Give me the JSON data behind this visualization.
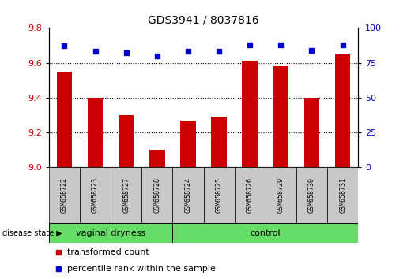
{
  "title": "GDS3941 / 8037816",
  "samples": [
    "GSM658722",
    "GSM658723",
    "GSM658727",
    "GSM658728",
    "GSM658724",
    "GSM658725",
    "GSM658726",
    "GSM658729",
    "GSM658730",
    "GSM658731"
  ],
  "red_values": [
    9.55,
    9.4,
    9.3,
    9.1,
    9.27,
    9.29,
    9.61,
    9.58,
    9.4,
    9.65
  ],
  "blue_values": [
    87,
    83,
    82,
    80,
    83,
    83,
    88,
    88,
    84,
    88
  ],
  "ylim_left": [
    9.0,
    9.8
  ],
  "ylim_right": [
    0,
    100
  ],
  "yticks_left": [
    9.0,
    9.2,
    9.4,
    9.6,
    9.8
  ],
  "yticks_right": [
    0,
    25,
    50,
    75,
    100
  ],
  "bar_color": "#CC0000",
  "dot_color": "#0000CC",
  "tick_color_left": "#CC0000",
  "tick_color_right": "#0000CC",
  "sample_bg_color": "#C8C8C8",
  "group_color": "#66DD66",
  "bar_width": 0.5,
  "vaginal_count": 4,
  "control_count": 6,
  "vaginal_label": "vaginal dryness",
  "control_label": "control",
  "disease_state_label": "disease state",
  "legend_label_red": "transformed count",
  "legend_label_blue": "percentile rank within the sample",
  "grid_ticks": [
    9.2,
    9.4,
    9.6
  ]
}
